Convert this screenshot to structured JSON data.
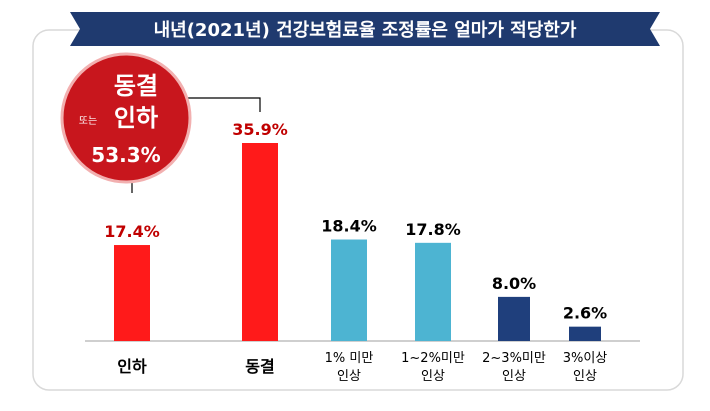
{
  "chart_data": {
    "type": "bar",
    "title": "내년(2021년) 건강보험료율 조정률은 얼마가 적당한가",
    "categories": [
      [
        "인하"
      ],
      [
        "동결"
      ],
      [
        "1% 미만",
        "인상"
      ],
      [
        "1~2%미만",
        "인상"
      ],
      [
        "2~3%미만",
        "인상"
      ],
      [
        "3%이상",
        "인상"
      ]
    ],
    "values": [
      17.4,
      35.9,
      18.4,
      17.8,
      8.0,
      2.6
    ],
    "value_labels": [
      "17.4%",
      "35.9%",
      "18.4%",
      "17.8%",
      "8.0%",
      "2.6%"
    ],
    "colors": [
      "#ff1a1a",
      "#ff1a1a",
      "#4db4d2",
      "#4db4d2",
      "#1f3f7c",
      "#1f3f7c"
    ],
    "value_label_colors": [
      "#c00000",
      "#c00000",
      "#000000",
      "#000000",
      "#000000",
      "#000000"
    ],
    "ylim": [
      0,
      40
    ],
    "grid": false,
    "annotation": {
      "line1": "동결",
      "line2": "인하",
      "prefix": "또는",
      "value": "53.3%",
      "color": "#c8161d"
    }
  }
}
